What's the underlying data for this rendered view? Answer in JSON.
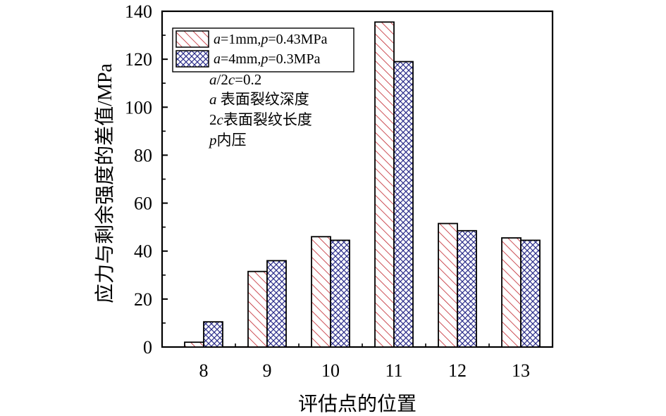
{
  "chart_data": {
    "type": "bar",
    "categories": [
      "8",
      "9",
      "10",
      "11",
      "12",
      "13"
    ],
    "series": [
      {
        "name": "a=1mm,p=0.43MPa",
        "values": [
          2,
          31.5,
          46,
          135.5,
          51.5,
          45.5
        ],
        "color": "#c0232b",
        "pattern": "diagonal-hatch"
      },
      {
        "name": "a=4mm,p=0.3MPa",
        "values": [
          10.5,
          36,
          44.5,
          119,
          48.5,
          44.5
        ],
        "color": "#2b2d8a",
        "pattern": "cross-hatch"
      }
    ],
    "xlabel": "评估点的位置",
    "ylabel": "应力与剩余强度的差值/MPa",
    "ylim": [
      0,
      140
    ],
    "yticks": [
      "0",
      "20",
      "40",
      "60",
      "80",
      "100",
      "120",
      "140"
    ],
    "legend_position": "top-left",
    "grid": false,
    "annotations": [
      {
        "id": "ratio",
        "parts": [
          {
            "t": "a",
            "i": true
          },
          {
            "t": "/2"
          },
          {
            "t": "c",
            "i": true
          },
          {
            "t": "=0.2"
          }
        ]
      },
      {
        "id": "depth",
        "parts": [
          {
            "t": "a",
            "i": true
          },
          {
            "t": " 表面裂纹深度"
          }
        ]
      },
      {
        "id": "length",
        "parts": [
          {
            "t": "2"
          },
          {
            "t": "c",
            "i": true
          },
          {
            "t": "表面裂纹长度"
          }
        ]
      },
      {
        "id": "pressure",
        "parts": [
          {
            "t": "p",
            "i": true
          },
          {
            "t": "内压"
          }
        ]
      }
    ]
  }
}
